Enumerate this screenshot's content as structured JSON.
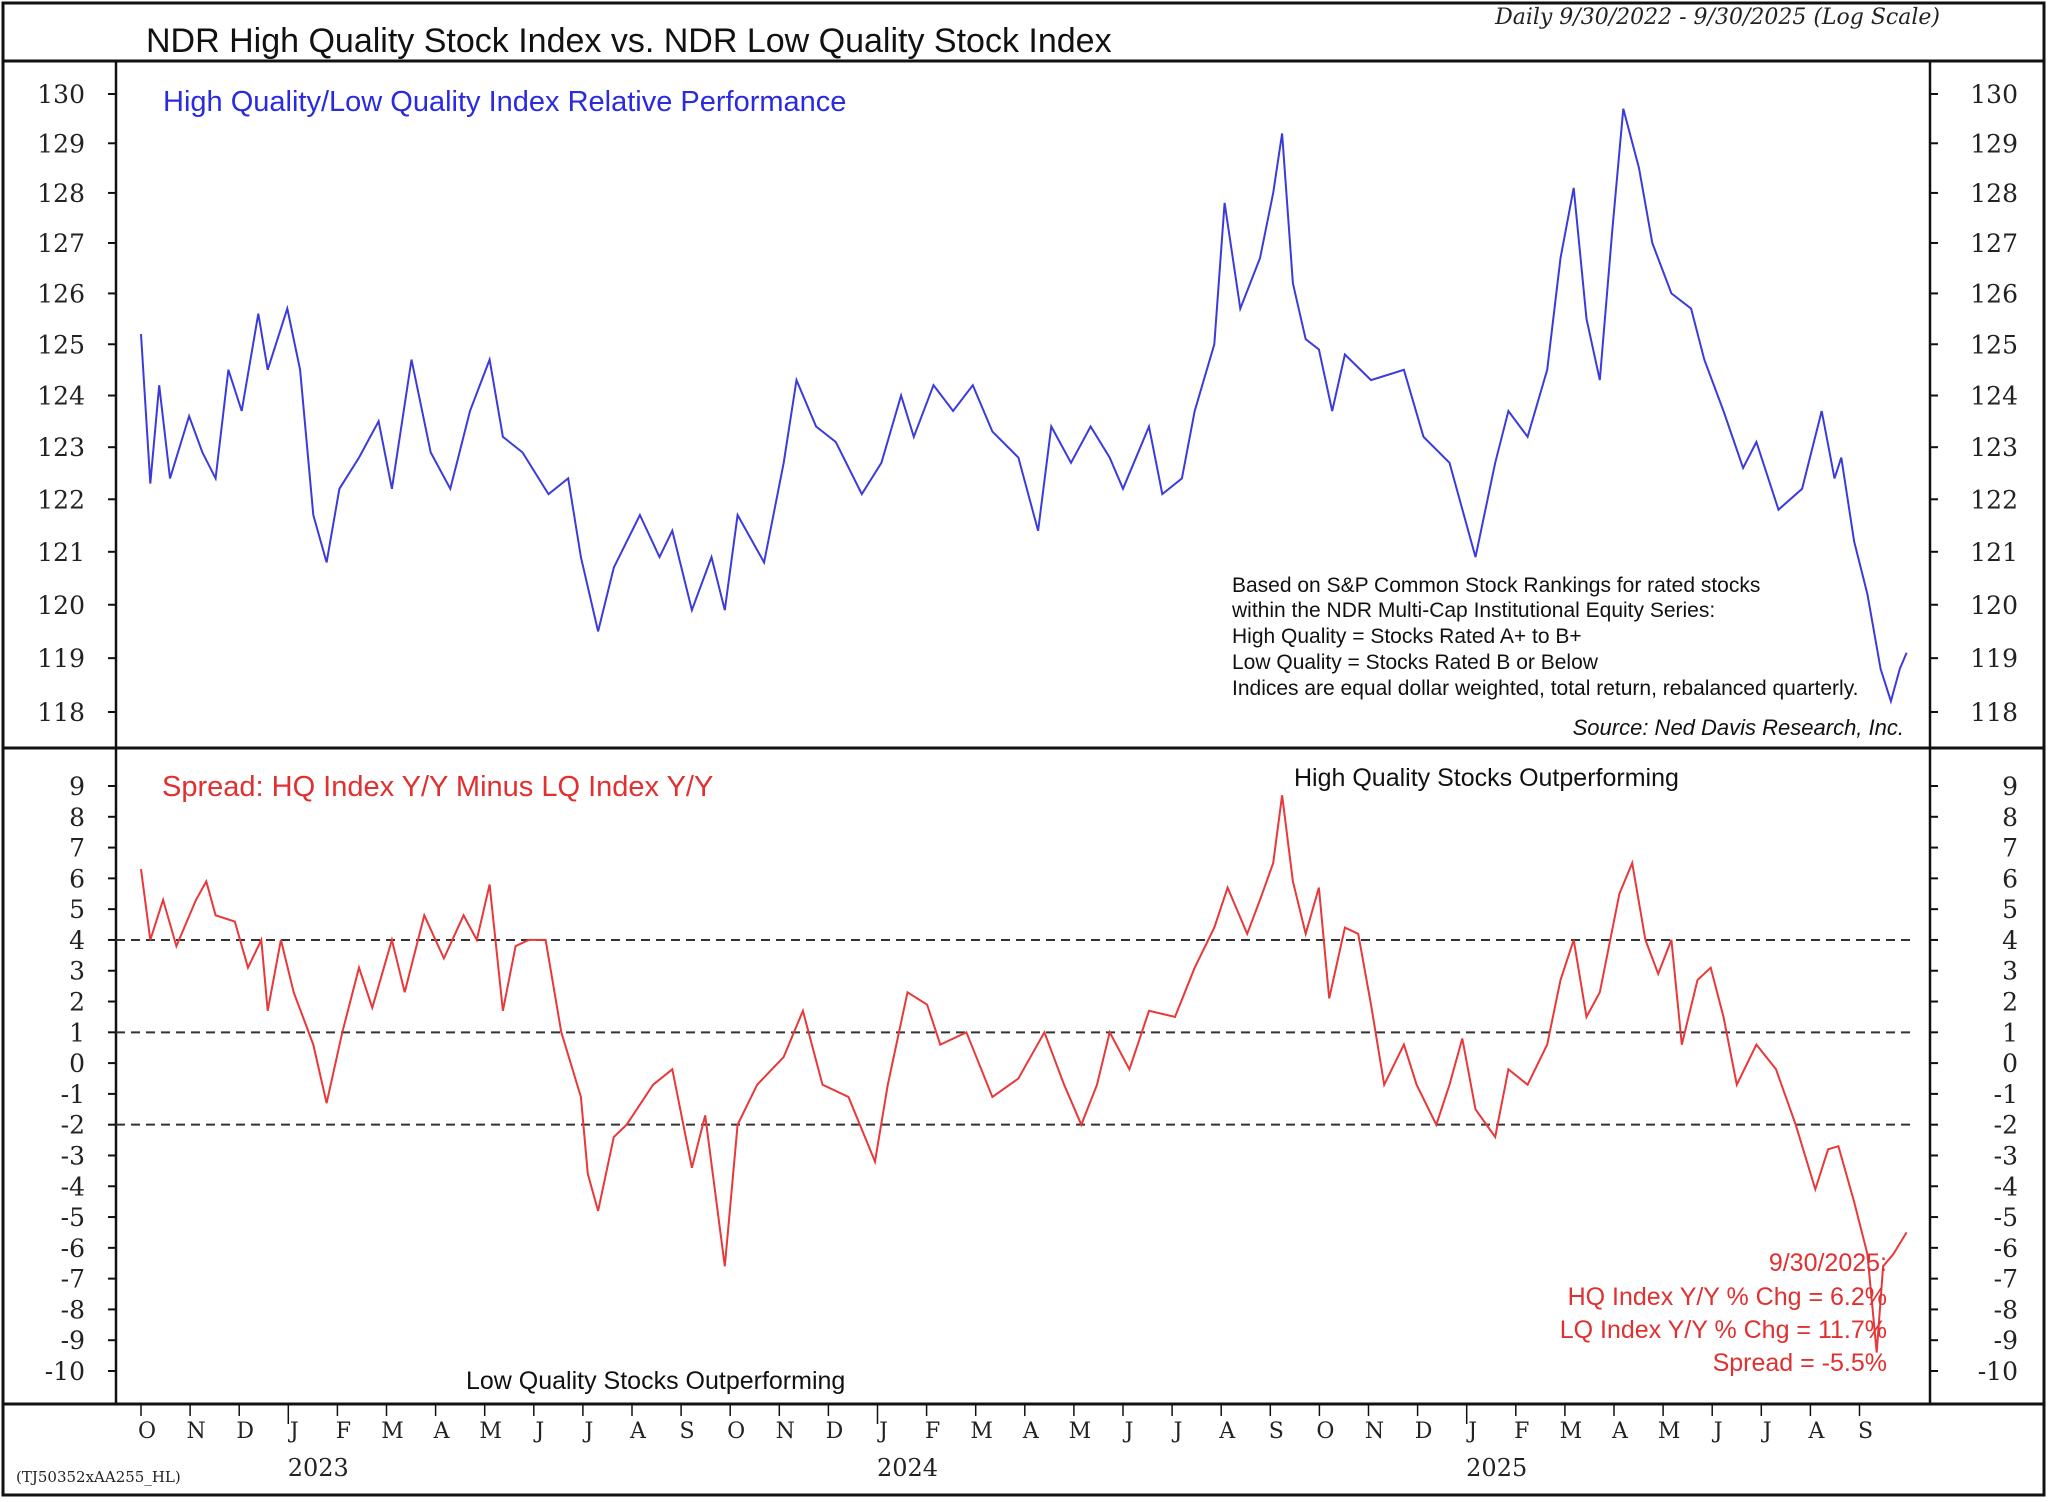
{
  "title": "NDR High Quality Stock Index vs. NDR Low Quality Stock Index",
  "subtitle": "Daily 9/30/2022 - 9/30/2025 (Log Scale)",
  "footer_code": "(TJ50352xAA255_HL)",
  "colors": {
    "top_series": "#3b3bdc",
    "bottom_series": "#e8383a",
    "label_blue": "#2a2ae0",
    "label_red": "#e03030"
  },
  "chart_data": [
    {
      "type": "line",
      "title": "High Quality/Low Quality Index Relative Performance",
      "x_unit": "months since Oct 1, 2022",
      "ylim": [
        118,
        130
      ],
      "yscale": "log",
      "yticks": [
        130,
        129,
        128,
        127,
        126,
        125,
        124,
        123,
        122,
        121,
        120,
        119,
        118
      ],
      "notes": [
        "Based on S&P Common Stock Rankings for rated stocks",
        "within the NDR Multi-Cap Institutional Equity Series:",
        "High Quality = Stocks Rated A+ to B+",
        "Low Quality = Stocks Rated B or Below",
        "Indices are equal dollar weighted, total return, rebalanced quarterly."
      ],
      "source": "Source: Ned Davis Research, Inc.",
      "points": [
        [
          0,
          125.2
        ],
        [
          0.19,
          122.3
        ],
        [
          0.37,
          124.2
        ],
        [
          0.59,
          122.4
        ],
        [
          0.98,
          123.6
        ],
        [
          1.25,
          122.9
        ],
        [
          1.52,
          122.4
        ],
        [
          1.78,
          124.5
        ],
        [
          2.05,
          123.7
        ],
        [
          2.39,
          125.6
        ],
        [
          2.58,
          124.5
        ],
        [
          2.98,
          125.7
        ],
        [
          3.24,
          124.5
        ],
        [
          3.51,
          121.7
        ],
        [
          3.78,
          120.8
        ],
        [
          4.04,
          122.2
        ],
        [
          4.44,
          122.8
        ],
        [
          4.84,
          123.5
        ],
        [
          5.11,
          122.2
        ],
        [
          5.51,
          124.7
        ],
        [
          5.9,
          122.9
        ],
        [
          6.3,
          122.2
        ],
        [
          6.7,
          123.7
        ],
        [
          7.1,
          124.7
        ],
        [
          7.37,
          123.2
        ],
        [
          7.77,
          122.9
        ],
        [
          8.3,
          122.1
        ],
        [
          8.7,
          122.4
        ],
        [
          8.96,
          120.9
        ],
        [
          9.31,
          119.5
        ],
        [
          9.63,
          120.7
        ],
        [
          10.16,
          121.7
        ],
        [
          10.56,
          120.9
        ],
        [
          10.82,
          121.4
        ],
        [
          11.22,
          119.9
        ],
        [
          11.62,
          120.9
        ],
        [
          11.89,
          119.9
        ],
        [
          12.15,
          121.7
        ],
        [
          12.69,
          120.8
        ],
        [
          13.09,
          122.7
        ],
        [
          13.35,
          124.3
        ],
        [
          13.75,
          123.4
        ],
        [
          14.15,
          123.1
        ],
        [
          14.68,
          122.1
        ],
        [
          15.08,
          122.7
        ],
        [
          15.48,
          124.0
        ],
        [
          15.74,
          123.2
        ],
        [
          16.14,
          124.2
        ],
        [
          16.54,
          123.7
        ],
        [
          16.94,
          124.2
        ],
        [
          17.34,
          123.3
        ],
        [
          17.87,
          122.8
        ],
        [
          18.27,
          121.4
        ],
        [
          18.54,
          123.4
        ],
        [
          18.94,
          122.7
        ],
        [
          19.34,
          123.4
        ],
        [
          19.73,
          122.8
        ],
        [
          20.0,
          122.2
        ],
        [
          20.53,
          123.4
        ],
        [
          20.8,
          122.1
        ],
        [
          21.2,
          122.4
        ],
        [
          21.46,
          123.7
        ],
        [
          21.86,
          125.0
        ],
        [
          22.07,
          127.8
        ],
        [
          22.39,
          125.7
        ],
        [
          22.79,
          126.7
        ],
        [
          23.06,
          128.0
        ],
        [
          23.24,
          129.2
        ],
        [
          23.46,
          126.2
        ],
        [
          23.72,
          125.1
        ],
        [
          23.99,
          124.9
        ],
        [
          24.26,
          123.7
        ],
        [
          24.52,
          124.8
        ],
        [
          25.05,
          124.3
        ],
        [
          25.72,
          124.5
        ],
        [
          26.12,
          123.2
        ],
        [
          26.65,
          122.7
        ],
        [
          27.18,
          120.9
        ],
        [
          27.58,
          122.7
        ],
        [
          27.85,
          123.7
        ],
        [
          28.24,
          123.2
        ],
        [
          28.64,
          124.5
        ],
        [
          28.91,
          126.7
        ],
        [
          29.18,
          128.1
        ],
        [
          29.44,
          125.5
        ],
        [
          29.71,
          124.3
        ],
        [
          29.97,
          127.3
        ],
        [
          30.19,
          129.7
        ],
        [
          30.51,
          128.5
        ],
        [
          30.78,
          127.0
        ],
        [
          31.17,
          126.0
        ],
        [
          31.57,
          125.7
        ],
        [
          31.84,
          124.7
        ],
        [
          32.23,
          123.7
        ],
        [
          32.63,
          122.6
        ],
        [
          32.9,
          123.1
        ],
        [
          33.35,
          121.8
        ],
        [
          33.83,
          122.2
        ],
        [
          34.23,
          123.7
        ],
        [
          34.49,
          122.4
        ],
        [
          34.63,
          122.8
        ],
        [
          34.89,
          121.2
        ],
        [
          35.16,
          120.2
        ],
        [
          35.43,
          118.8
        ],
        [
          35.64,
          118.2
        ],
        [
          35.82,
          118.8
        ],
        [
          35.96,
          119.1
        ]
      ]
    },
    {
      "type": "line",
      "title": "Spread: HQ Index Y/Y Minus LQ Index Y/Y",
      "x_unit": "months since Oct 1, 2022",
      "ylim": [
        -10,
        9
      ],
      "yticks": [
        9,
        8,
        7,
        6,
        5,
        4,
        3,
        2,
        1,
        0,
        -1,
        -2,
        -3,
        -4,
        -5,
        -6,
        -7,
        -8,
        -9,
        -10
      ],
      "reference_lines": [
        4,
        1,
        -2
      ],
      "annotation_top": "High Quality Stocks Outperforming",
      "annotation_bottom": "Low Quality Stocks Outperforming",
      "latest": [
        "9/30/2025:",
        "HQ Index Y/Y % Chg = 6.2%",
        "LQ Index Y/Y % Chg = 11.7%",
        "Spread = -5.5%"
      ],
      "points": [
        [
          0,
          6.3
        ],
        [
          0.19,
          4.0
        ],
        [
          0.45,
          5.3
        ],
        [
          0.72,
          3.8
        ],
        [
          1.12,
          5.3
        ],
        [
          1.33,
          5.9
        ],
        [
          1.52,
          4.8
        ],
        [
          1.91,
          4.6
        ],
        [
          2.18,
          3.1
        ],
        [
          2.45,
          4.0
        ],
        [
          2.58,
          1.7
        ],
        [
          2.85,
          4.0
        ],
        [
          3.11,
          2.3
        ],
        [
          3.51,
          0.6
        ],
        [
          3.78,
          -1.3
        ],
        [
          4.1,
          1.0
        ],
        [
          4.44,
          3.1
        ],
        [
          4.71,
          1.8
        ],
        [
          5.11,
          4.0
        ],
        [
          5.37,
          2.3
        ],
        [
          5.77,
          4.8
        ],
        [
          6.17,
          3.4
        ],
        [
          6.57,
          4.8
        ],
        [
          6.84,
          4.0
        ],
        [
          7.1,
          5.8
        ],
        [
          7.37,
          1.7
        ],
        [
          7.63,
          3.8
        ],
        [
          7.9,
          4.0
        ],
        [
          8.24,
          4.0
        ],
        [
          8.56,
          1.0
        ],
        [
          8.96,
          -1.1
        ],
        [
          9.1,
          -3.6
        ],
        [
          9.31,
          -4.8
        ],
        [
          9.63,
          -2.4
        ],
        [
          9.89,
          -2.0
        ],
        [
          10.43,
          -0.7
        ],
        [
          10.82,
          -0.2
        ],
        [
          11.22,
          -3.4
        ],
        [
          11.49,
          -1.7
        ],
        [
          11.89,
          -6.6
        ],
        [
          12.15,
          -2.0
        ],
        [
          12.55,
          -0.7
        ],
        [
          13.09,
          0.2
        ],
        [
          13.48,
          1.7
        ],
        [
          13.88,
          -0.7
        ],
        [
          14.41,
          -1.1
        ],
        [
          14.95,
          -3.2
        ],
        [
          15.21,
          -0.7
        ],
        [
          15.61,
          2.3
        ],
        [
          16.01,
          1.9
        ],
        [
          16.28,
          0.6
        ],
        [
          16.81,
          1.0
        ],
        [
          17.34,
          -1.1
        ],
        [
          17.87,
          -0.5
        ],
        [
          18.4,
          1.0
        ],
        [
          18.8,
          -0.7
        ],
        [
          19.15,
          -2.0
        ],
        [
          19.47,
          -0.7
        ],
        [
          19.73,
          1.0
        ],
        [
          20.13,
          -0.2
        ],
        [
          20.53,
          1.7
        ],
        [
          21.06,
          1.5
        ],
        [
          21.46,
          3.1
        ],
        [
          21.86,
          4.4
        ],
        [
          22.13,
          5.7
        ],
        [
          22.53,
          4.2
        ],
        [
          22.79,
          5.3
        ],
        [
          23.06,
          6.5
        ],
        [
          23.24,
          8.7
        ],
        [
          23.46,
          5.9
        ],
        [
          23.72,
          4.2
        ],
        [
          23.99,
          5.7
        ],
        [
          24.2,
          2.1
        ],
        [
          24.52,
          4.4
        ],
        [
          24.79,
          4.2
        ],
        [
          25.05,
          1.9
        ],
        [
          25.32,
          -0.7
        ],
        [
          25.72,
          0.6
        ],
        [
          25.98,
          -0.7
        ],
        [
          26.38,
          -2.0
        ],
        [
          26.65,
          -0.7
        ],
        [
          26.91,
          0.8
        ],
        [
          27.18,
          -1.5
        ],
        [
          27.58,
          -2.4
        ],
        [
          27.85,
          -0.2
        ],
        [
          28.24,
          -0.7
        ],
        [
          28.64,
          0.6
        ],
        [
          28.91,
          2.7
        ],
        [
          29.18,
          4.0
        ],
        [
          29.44,
          1.5
        ],
        [
          29.71,
          2.3
        ],
        [
          30.11,
          5.5
        ],
        [
          30.37,
          6.5
        ],
        [
          30.64,
          4.0
        ],
        [
          30.9,
          2.9
        ],
        [
          31.17,
          4.0
        ],
        [
          31.38,
          0.6
        ],
        [
          31.7,
          2.7
        ],
        [
          31.97,
          3.1
        ],
        [
          32.23,
          1.5
        ],
        [
          32.5,
          -0.7
        ],
        [
          32.9,
          0.6
        ],
        [
          33.3,
          -0.2
        ],
        [
          33.7,
          -2.0
        ],
        [
          34.1,
          -4.1
        ],
        [
          34.36,
          -2.8
        ],
        [
          34.57,
          -2.7
        ],
        [
          34.89,
          -4.5
        ],
        [
          35.16,
          -6.2
        ],
        [
          35.35,
          -9.4
        ],
        [
          35.48,
          -6.6
        ],
        [
          35.69,
          -6.2
        ],
        [
          35.96,
          -5.5
        ]
      ]
    }
  ],
  "x_axis": {
    "months": [
      "O",
      "N",
      "D",
      "J",
      "F",
      "M",
      "A",
      "M",
      "J",
      "J",
      "A",
      "S",
      "O",
      "N",
      "D",
      "J",
      "F",
      "M",
      "A",
      "M",
      "J",
      "J",
      "A",
      "S",
      "O",
      "N",
      "D",
      "J",
      "F",
      "M",
      "A",
      "M",
      "J",
      "J",
      "A",
      "S"
    ],
    "years": [
      {
        "label": "2023",
        "month_index": 3
      },
      {
        "label": "2024",
        "month_index": 15
      },
      {
        "label": "2025",
        "month_index": 27
      }
    ]
  }
}
